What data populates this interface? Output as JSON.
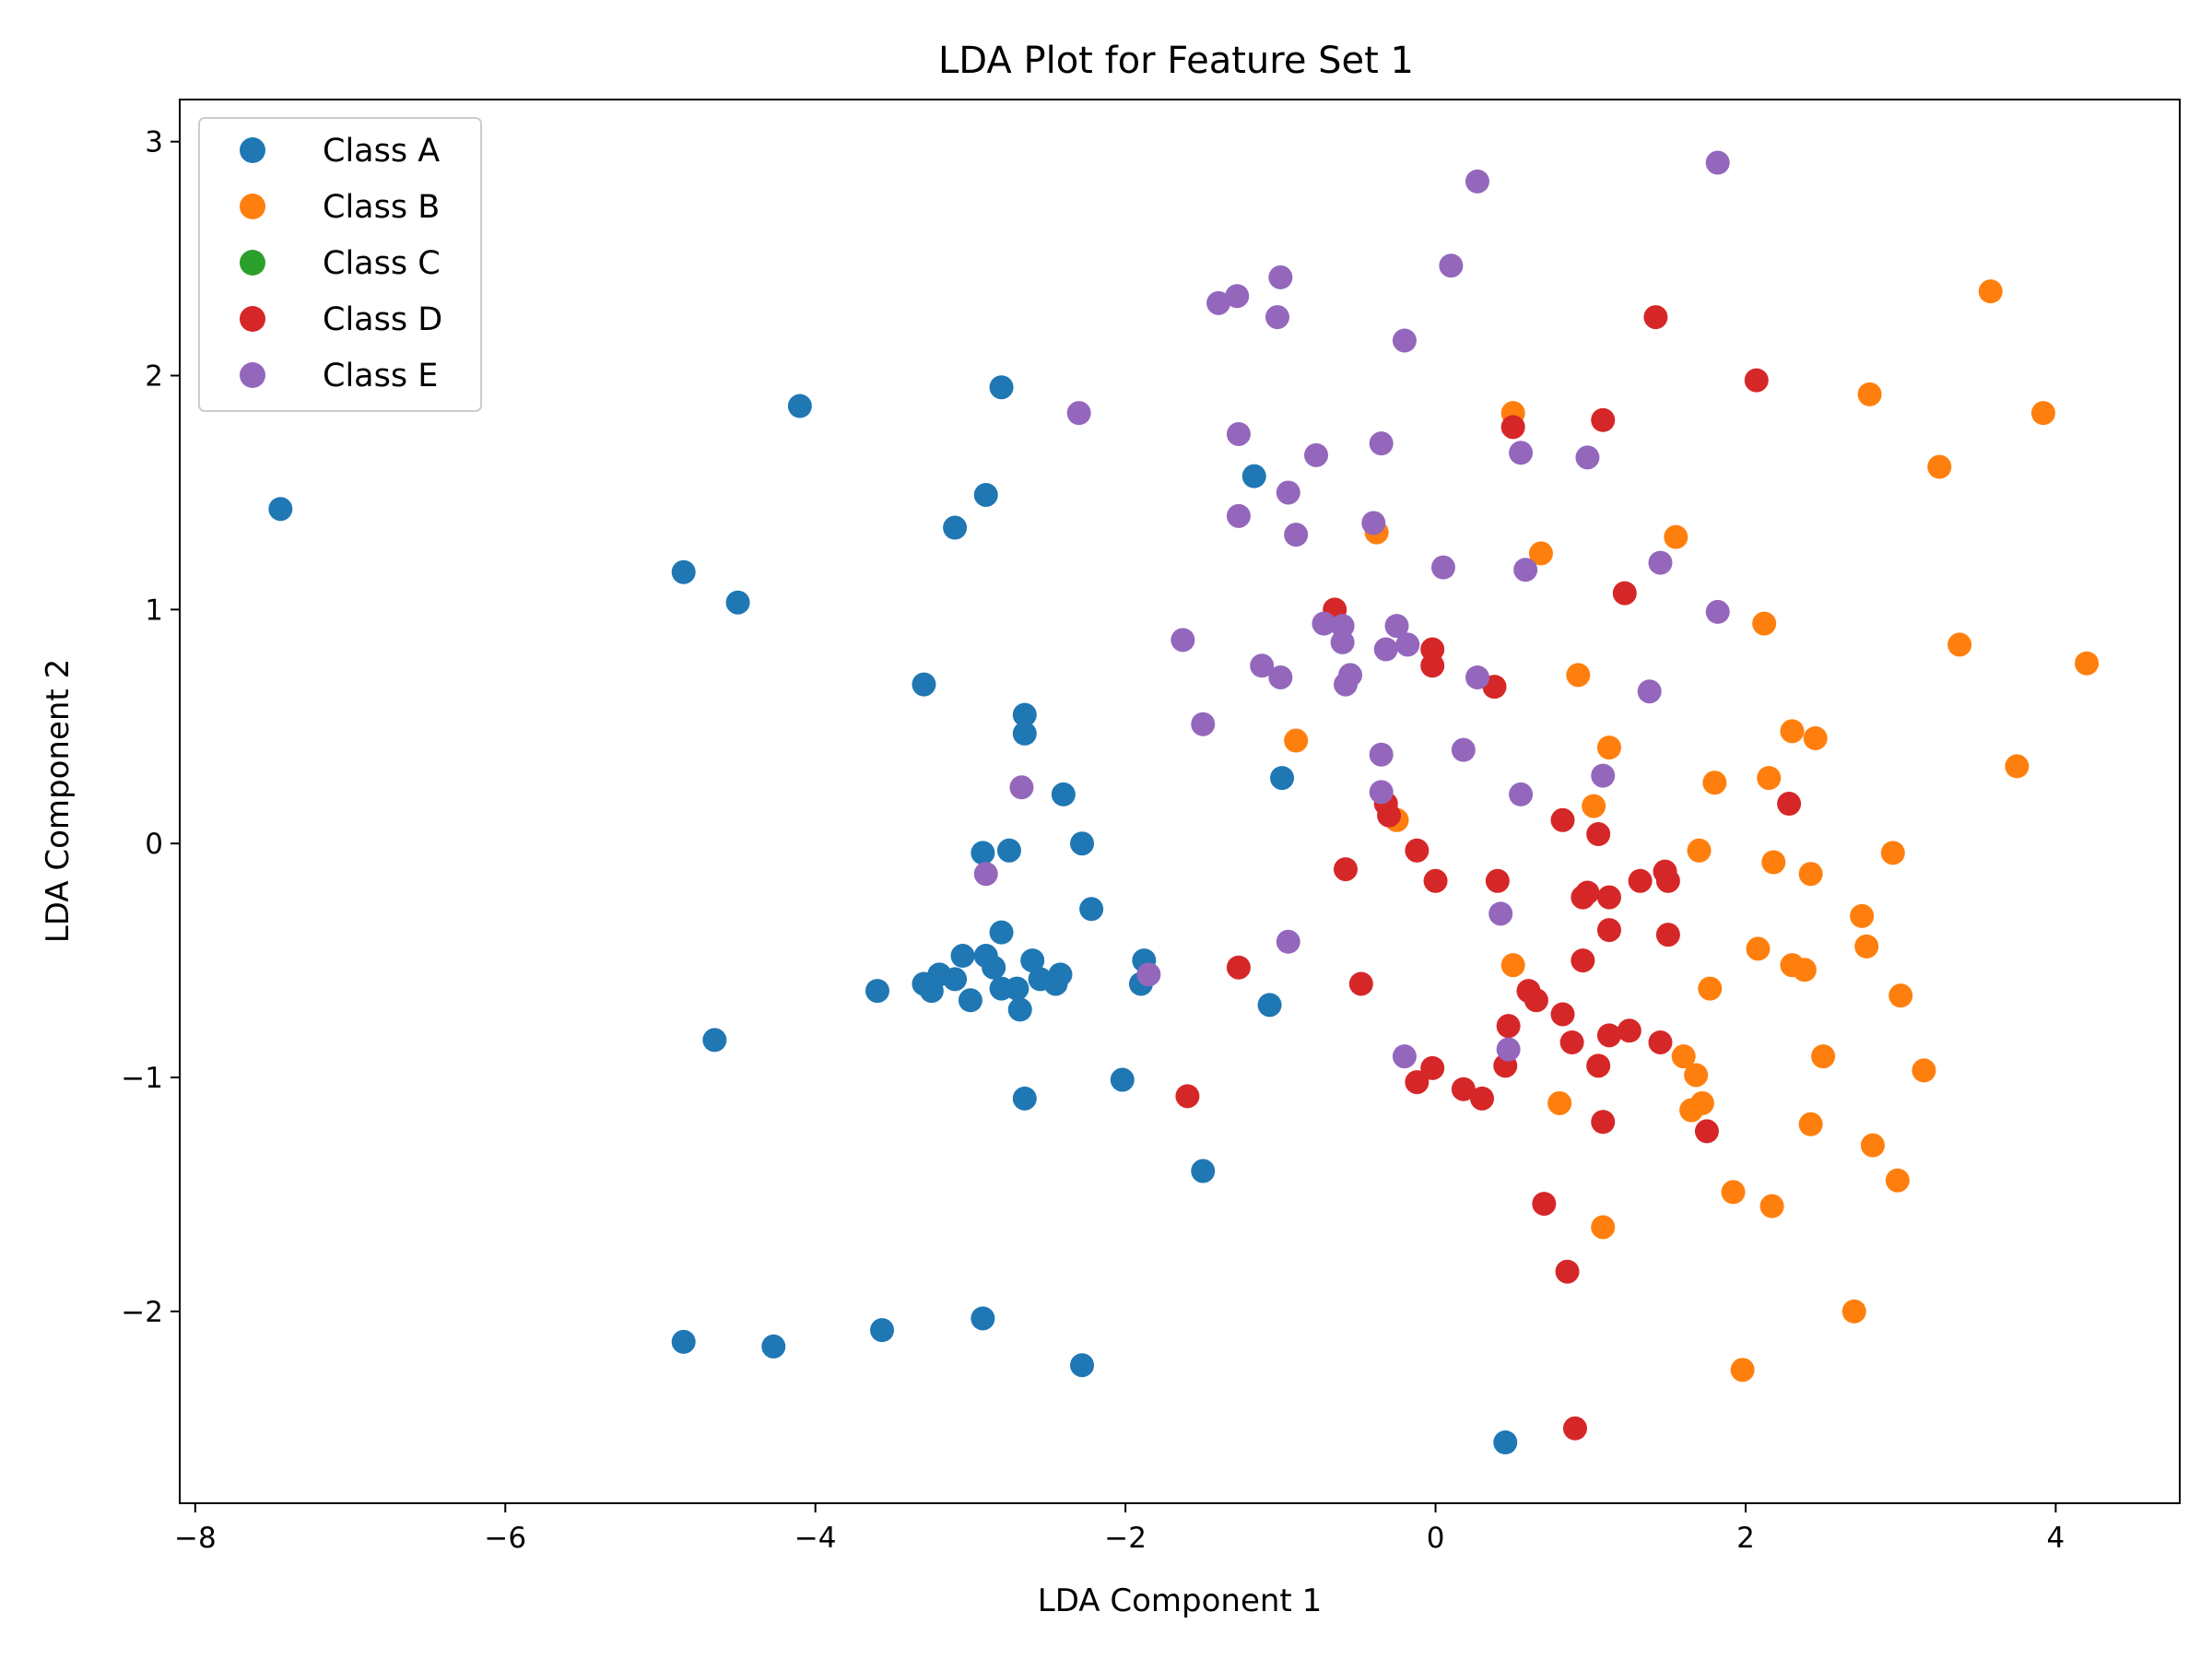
{
  "chart_data": {
    "type": "scatter",
    "title": "LDA Plot for Feature Set 1",
    "xlabel": "LDA Component 1",
    "ylabel": "LDA Component 2",
    "xlim": [
      -8.1,
      4.8
    ],
    "ylim": [
      -2.82,
      3.18
    ],
    "xticks": [
      -8,
      -6,
      -4,
      -2,
      0,
      2,
      4
    ],
    "yticks": [
      -2,
      -1,
      0,
      1,
      2,
      3
    ],
    "xtick_labels": [
      "−8",
      "−6",
      "−4",
      "−2",
      "0",
      "2",
      "4"
    ],
    "ytick_labels": [
      "−2",
      "−1",
      "0",
      "1",
      "2",
      "3"
    ],
    "grid": false,
    "legend_position": "top-left",
    "series": [
      {
        "name": "Class A",
        "color": "#1f77b4",
        "points": [
          [
            -7.45,
            1.43
          ],
          [
            -4.85,
            1.16
          ],
          [
            -4.5,
            1.03
          ],
          [
            -4.1,
            1.87
          ],
          [
            -2.8,
            1.95
          ],
          [
            -3.1,
            1.35
          ],
          [
            -2.9,
            1.49
          ],
          [
            -1.17,
            1.57
          ],
          [
            -3.3,
            0.68
          ],
          [
            -2.65,
            0.55
          ],
          [
            -2.65,
            0.47
          ],
          [
            -2.4,
            0.21
          ],
          [
            -2.28,
            0.0
          ],
          [
            -2.92,
            -0.04
          ],
          [
            -2.75,
            -0.03
          ],
          [
            -2.22,
            -0.28
          ],
          [
            -2.8,
            -0.38
          ],
          [
            -1.88,
            -0.5
          ],
          [
            -3.05,
            -0.48
          ],
          [
            -2.9,
            -0.48
          ],
          [
            -3.2,
            -0.56
          ],
          [
            -3.3,
            -0.6
          ],
          [
            -3.25,
            -0.63
          ],
          [
            -3.6,
            -0.63
          ],
          [
            -3.1,
            -0.58
          ],
          [
            -2.85,
            -0.53
          ],
          [
            -2.8,
            -0.62
          ],
          [
            -2.6,
            -0.5
          ],
          [
            -2.55,
            -0.58
          ],
          [
            -2.45,
            -0.6
          ],
          [
            -2.42,
            -0.56
          ],
          [
            -2.7,
            -0.62
          ],
          [
            -3.0,
            -0.67
          ],
          [
            -2.68,
            -0.71
          ],
          [
            -1.9,
            -0.6
          ],
          [
            -1.07,
            -0.69
          ],
          [
            -4.65,
            -0.84
          ],
          [
            -2.02,
            -1.01
          ],
          [
            -2.65,
            -1.09
          ],
          [
            -1.5,
            -1.4
          ],
          [
            -4.85,
            -2.13
          ],
          [
            -4.27,
            -2.15
          ],
          [
            -3.57,
            -2.08
          ],
          [
            -2.92,
            -2.03
          ],
          [
            -2.28,
            -2.23
          ],
          [
            -0.99,
            0.28
          ],
          [
            0.45,
            -2.56
          ]
        ]
      },
      {
        "name": "Class B",
        "color": "#ff7f0e",
        "points": [
          [
            3.58,
            2.36
          ],
          [
            2.8,
            1.92
          ],
          [
            0.5,
            1.84
          ],
          [
            3.92,
            1.84
          ],
          [
            3.25,
            1.61
          ],
          [
            1.55,
            1.31
          ],
          [
            -0.38,
            1.33
          ],
          [
            0.68,
            1.24
          ],
          [
            2.12,
            0.94
          ],
          [
            3.38,
            0.85
          ],
          [
            4.2,
            0.77
          ],
          [
            0.92,
            0.72
          ],
          [
            -0.9,
            0.44
          ],
          [
            2.3,
            0.48
          ],
          [
            2.45,
            0.45
          ],
          [
            1.12,
            0.41
          ],
          [
            3.75,
            0.33
          ],
          [
            2.15,
            0.28
          ],
          [
            1.8,
            0.26
          ],
          [
            1.02,
            0.16
          ],
          [
            -0.25,
            0.1
          ],
          [
            1.7,
            -0.03
          ],
          [
            2.95,
            -0.04
          ],
          [
            2.18,
            -0.08
          ],
          [
            2.42,
            -0.13
          ],
          [
            2.75,
            -0.31
          ],
          [
            2.78,
            -0.44
          ],
          [
            2.08,
            -0.45
          ],
          [
            0.5,
            -0.52
          ],
          [
            2.3,
            -0.52
          ],
          [
            2.38,
            -0.54
          ],
          [
            1.77,
            -0.62
          ],
          [
            3.0,
            -0.65
          ],
          [
            1.6,
            -0.91
          ],
          [
            2.5,
            -0.91
          ],
          [
            1.68,
            -0.99
          ],
          [
            3.15,
            -0.97
          ],
          [
            0.8,
            -1.11
          ],
          [
            1.72,
            -1.11
          ],
          [
            1.65,
            -1.14
          ],
          [
            2.42,
            -1.2
          ],
          [
            2.82,
            -1.29
          ],
          [
            2.98,
            -1.44
          ],
          [
            1.92,
            -1.49
          ],
          [
            2.17,
            -1.55
          ],
          [
            1.08,
            -1.64
          ],
          [
            2.7,
            -2.0
          ],
          [
            1.98,
            -2.25
          ]
        ]
      },
      {
        "name": "Class C",
        "color": "#2ca02c",
        "points": []
      },
      {
        "name": "Class D",
        "color": "#d62728",
        "points": [
          [
            1.42,
            2.25
          ],
          [
            2.07,
            1.98
          ],
          [
            0.5,
            1.78
          ],
          [
            1.08,
            1.81
          ],
          [
            1.22,
            1.07
          ],
          [
            -0.65,
            1.0
          ],
          [
            -0.02,
            0.83
          ],
          [
            -0.02,
            0.76
          ],
          [
            0.38,
            0.67
          ],
          [
            -0.32,
            0.17
          ],
          [
            -0.3,
            0.12
          ],
          [
            0.82,
            0.1
          ],
          [
            1.05,
            0.04
          ],
          [
            2.28,
            0.17
          ],
          [
            -0.58,
            -0.11
          ],
          [
            -0.12,
            -0.03
          ],
          [
            0.0,
            -0.16
          ],
          [
            0.4,
            -0.16
          ],
          [
            0.95,
            -0.23
          ],
          [
            0.98,
            -0.21
          ],
          [
            1.12,
            -0.23
          ],
          [
            1.32,
            -0.16
          ],
          [
            1.48,
            -0.12
          ],
          [
            1.5,
            -0.16
          ],
          [
            1.12,
            -0.37
          ],
          [
            1.5,
            -0.39
          ],
          [
            0.95,
            -0.5
          ],
          [
            -1.27,
            -0.53
          ],
          [
            -0.48,
            -0.6
          ],
          [
            0.6,
            -0.63
          ],
          [
            0.65,
            -0.67
          ],
          [
            0.82,
            -0.73
          ],
          [
            0.47,
            -0.78
          ],
          [
            1.12,
            -0.82
          ],
          [
            1.25,
            -0.8
          ],
          [
            1.45,
            -0.85
          ],
          [
            0.88,
            -0.85
          ],
          [
            0.45,
            -0.95
          ],
          [
            1.05,
            -0.95
          ],
          [
            -0.02,
            -0.96
          ],
          [
            -0.12,
            -1.02
          ],
          [
            0.18,
            -1.05
          ],
          [
            0.3,
            -1.09
          ],
          [
            -1.6,
            -1.08
          ],
          [
            1.08,
            -1.19
          ],
          [
            1.75,
            -1.23
          ],
          [
            0.7,
            -1.54
          ],
          [
            0.85,
            -1.83
          ],
          [
            0.9,
            -2.5
          ]
        ]
      },
      {
        "name": "Class E",
        "color": "#9467bd",
        "points": [
          [
            1.82,
            2.91
          ],
          [
            0.27,
            2.83
          ],
          [
            0.1,
            2.47
          ],
          [
            -1.0,
            2.42
          ],
          [
            -1.28,
            2.34
          ],
          [
            -1.4,
            2.31
          ],
          [
            -1.02,
            2.25
          ],
          [
            -0.2,
            2.15
          ],
          [
            -2.3,
            1.84
          ],
          [
            -1.27,
            1.75
          ],
          [
            -0.77,
            1.66
          ],
          [
            -0.35,
            1.71
          ],
          [
            0.55,
            1.67
          ],
          [
            0.98,
            1.65
          ],
          [
            -0.95,
            1.5
          ],
          [
            -1.27,
            1.4
          ],
          [
            -0.4,
            1.37
          ],
          [
            -0.9,
            1.32
          ],
          [
            0.05,
            1.18
          ],
          [
            0.58,
            1.17
          ],
          [
            1.45,
            1.2
          ],
          [
            1.82,
            0.99
          ],
          [
            -0.72,
            0.94
          ],
          [
            -0.6,
            0.93
          ],
          [
            -0.25,
            0.93
          ],
          [
            -0.6,
            0.86
          ],
          [
            -0.32,
            0.83
          ],
          [
            -0.18,
            0.85
          ],
          [
            -1.63,
            0.87
          ],
          [
            -1.12,
            0.76
          ],
          [
            -1.0,
            0.71
          ],
          [
            -0.58,
            0.68
          ],
          [
            -0.55,
            0.72
          ],
          [
            0.27,
            0.71
          ],
          [
            1.38,
            0.65
          ],
          [
            -1.5,
            0.51
          ],
          [
            -0.35,
            0.38
          ],
          [
            0.18,
            0.4
          ],
          [
            1.08,
            0.29
          ],
          [
            -2.67,
            0.24
          ],
          [
            -0.35,
            0.22
          ],
          [
            0.55,
            0.21
          ],
          [
            -2.9,
            -0.13
          ],
          [
            0.42,
            -0.3
          ],
          [
            -0.95,
            -0.42
          ],
          [
            -1.85,
            -0.56
          ],
          [
            -0.2,
            -0.91
          ],
          [
            0.47,
            -0.88
          ]
        ]
      }
    ]
  }
}
